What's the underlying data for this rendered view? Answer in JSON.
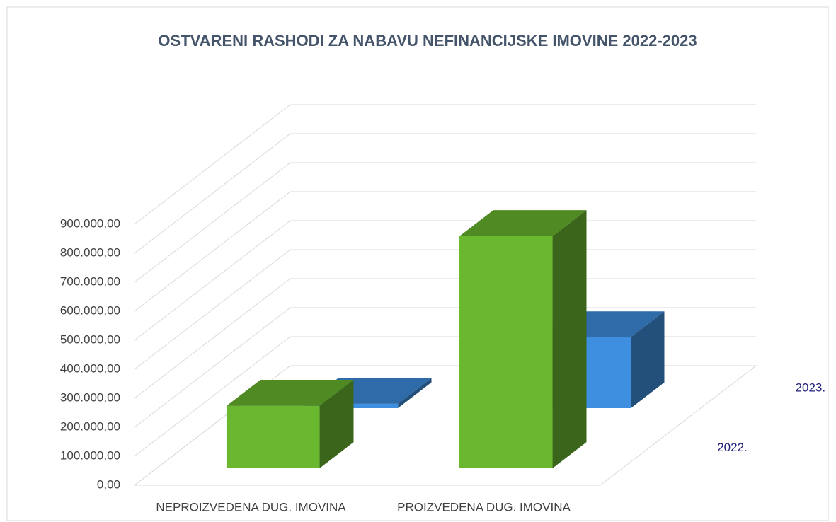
{
  "chart_data": {
    "type": "bar3d",
    "title": "OSTVARENI RASHODI ZA NABAVU NEFINANCIJSKE IMOVINE 2022-2023",
    "categories": [
      "NEPROIZVEDENA DUG. IMOVINA",
      "PROIZVEDENA DUG. IMOVINA"
    ],
    "series": [
      {
        "name": "2022.",
        "color": "#6ab82f",
        "values": [
          215000,
          800000
        ]
      },
      {
        "name": "2023.",
        "color": "#3f8fe0",
        "values": [
          15000,
          245000
        ]
      }
    ],
    "ylim": [
      0,
      900000
    ],
    "yticks": [
      {
        "value": 0,
        "label": "0,00"
      },
      {
        "value": 100000,
        "label": "100.000,00"
      },
      {
        "value": 200000,
        "label": "200.000,00"
      },
      {
        "value": 300000,
        "label": "300.000,00"
      },
      {
        "value": 400000,
        "label": "400.000,00"
      },
      {
        "value": 500000,
        "label": "500.000,00"
      },
      {
        "value": 600000,
        "label": "600.000,00"
      },
      {
        "value": 700000,
        "label": "700.000,00"
      },
      {
        "value": 800000,
        "label": "800.000,00"
      },
      {
        "value": 900000,
        "label": "900.000,00"
      }
    ],
    "grid": true
  }
}
